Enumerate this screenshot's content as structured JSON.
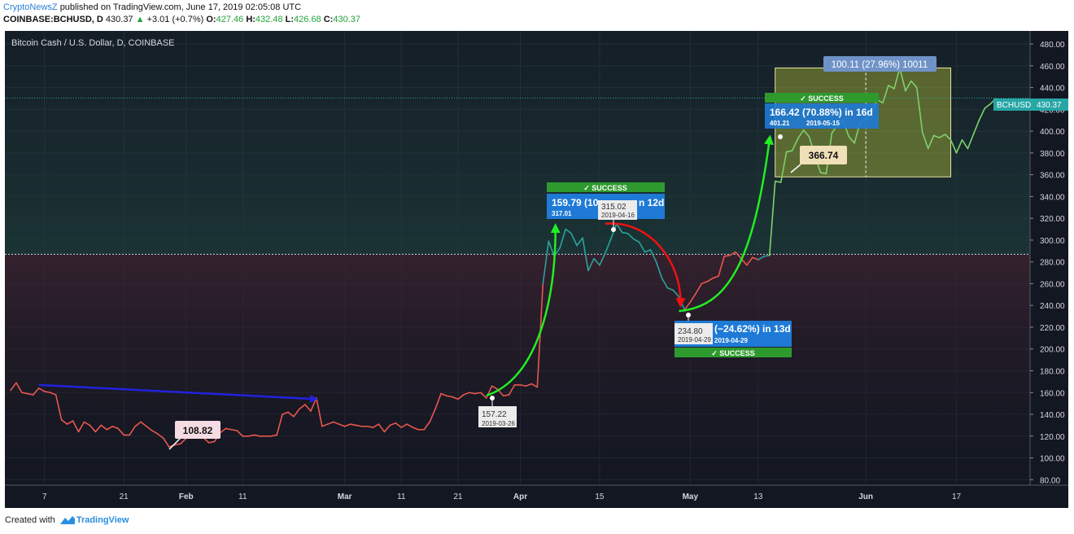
{
  "header": {
    "brand": "CryptoNewsZ",
    "published": "published on TradingView.com, June 17, 2019 02:05:08 UTC",
    "symbol": "COINBASE:BCHUSD, D",
    "last": "430.37",
    "change": "+3.01 (+0.7%)",
    "o_label": "O:",
    "o": "427.46",
    "h_label": "H:",
    "h": "432.48",
    "l_label": "L:",
    "l": "426.68",
    "c_label": "C:",
    "c": "430.37"
  },
  "footer": {
    "created_with": "Created with",
    "brand": "TradingView"
  },
  "chart_data": {
    "type": "line",
    "title": "Bitcoin Cash / U.S. Dollar, D, COINBASE",
    "xlabel": "",
    "ylabel": "",
    "ylim": [
      75,
      492
    ],
    "y_ticks": [
      80,
      100,
      120,
      140,
      160,
      180,
      200,
      220,
      240,
      260,
      280,
      300,
      320,
      340,
      360,
      380,
      400,
      420,
      440,
      460,
      480
    ],
    "x_ticks": [
      {
        "label": "7",
        "date": "2019-01-07"
      },
      {
        "label": "21",
        "date": "2019-01-21"
      },
      {
        "label": "Feb",
        "date": "2019-02-01"
      },
      {
        "label": "11",
        "date": "2019-02-11"
      },
      {
        "label": "Mar",
        "date": "2019-03-01"
      },
      {
        "label": "11",
        "date": "2019-03-11"
      },
      {
        "label": "21",
        "date": "2019-03-21"
      },
      {
        "label": "Apr",
        "date": "2019-04-01"
      },
      {
        "label": "15",
        "date": "2019-04-15"
      },
      {
        "label": "May",
        "date": "2019-05-01"
      },
      {
        "label": "13",
        "date": "2019-05-13"
      },
      {
        "label": "Jun",
        "date": "2019-06-01"
      },
      {
        "label": "17",
        "date": "2019-06-17"
      }
    ],
    "x_range": [
      "2018-12-31",
      "2019-06-30"
    ],
    "grid": true,
    "series": [
      {
        "start_date": "2019-01-01",
        "values": [
          162,
          169,
          160,
          159,
          158,
          164,
          161,
          160,
          158,
          135,
          131,
          134,
          124,
          133,
          130,
          124,
          130,
          126,
          129,
          127,
          121,
          121,
          129,
          133,
          129,
          125,
          122,
          118,
          110,
          112,
          113,
          118,
          121,
          121,
          119,
          114,
          115,
          123,
          127,
          126,
          125,
          120,
          120,
          121,
          120,
          120,
          120,
          121,
          140,
          142,
          138,
          145,
          149,
          143,
          155,
          129,
          131,
          133,
          131,
          129,
          131,
          130,
          129,
          129,
          128,
          131,
          124,
          130,
          132,
          128,
          131,
          128,
          126,
          126,
          133,
          145,
          159,
          157,
          156,
          154,
          158,
          160,
          159,
          160,
          155,
          166,
          163,
          157,
          158,
          167,
          167,
          166,
          168,
          165,
          260,
          299,
          285,
          293,
          310,
          306,
          295,
          302,
          272,
          283,
          277,
          288,
          301,
          315,
          307,
          306,
          301,
          298,
          289,
          291,
          280,
          265,
          256,
          254,
          248,
          236,
          243,
          251,
          260,
          262,
          265,
          267,
          285,
          286,
          289,
          283,
          277,
          284,
          282,
          285,
          286,
          354,
          353,
          381,
          382,
          393,
          401,
          395,
          378,
          362,
          361,
          398,
          406,
          410,
          395,
          389,
          408,
          411,
          416,
          429,
          426,
          442,
          439,
          458,
          437,
          446,
          440,
          399,
          384,
          396,
          394,
          397,
          392,
          380,
          392,
          384,
          397,
          410,
          421,
          425,
          430
        ]
      }
    ],
    "last_price_label": "BCHUSD",
    "last_price": "430.37",
    "reference_line": 287,
    "annotations": {
      "low_label": "108.82",
      "blue_arrow": {
        "from": [
          "2019-01-06",
          167
        ],
        "to": [
          "2019-02-24",
          154
        ]
      },
      "point_a": {
        "price": "157.22",
        "date": "2019-03-26"
      },
      "point_b": {
        "price": "315.02",
        "date": "2019-04-16"
      },
      "point_c": {
        "price": "234.80",
        "date": "2019-04-29"
      },
      "box1": {
        "title": "159.79 (10",
        "suffix": "n 12d",
        "sub": "317.01",
        "sub2": "201",
        "tag": "SUCCESS"
      },
      "box2": {
        "title": "(−24.62%) in 13d",
        "sub": "2019-04-29",
        "tag": "SUCCESS"
      },
      "box3": {
        "title": "166.42 (70.88%) in 16d",
        "sub": "401.21",
        "sub2": "2019-05-15",
        "tag": "SUCCESS"
      },
      "marker_366": "366.74",
      "range_box": {
        "label": "100.11 (27.96%) 10011",
        "top": 458,
        "bottom": 358
      }
    }
  }
}
